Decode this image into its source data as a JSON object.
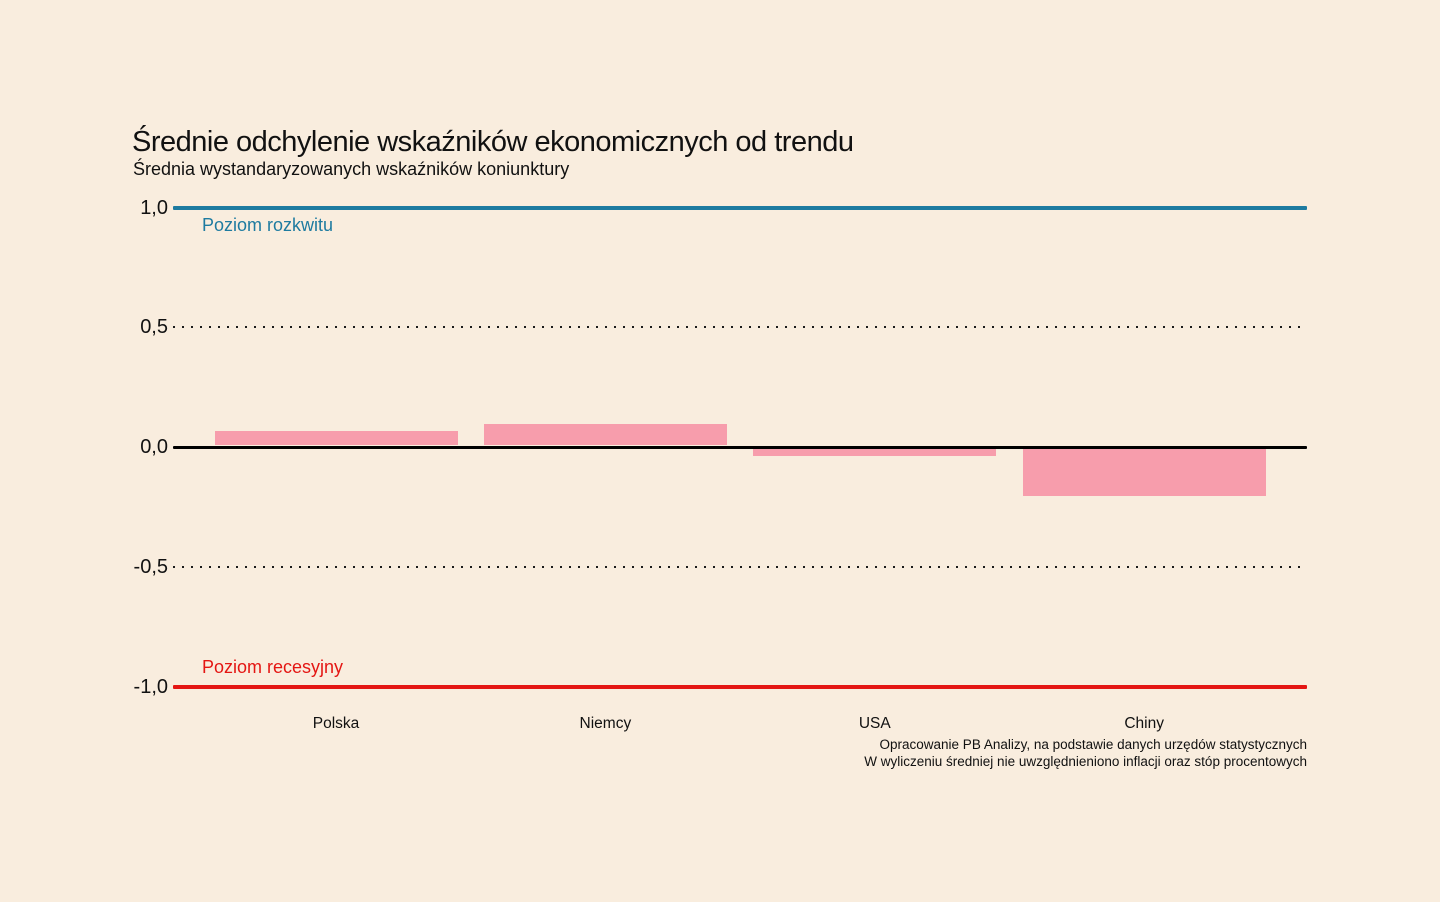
{
  "page": {
    "background": "#F9EDDE"
  },
  "chart": {
    "title": "Średnie odchylenie wskaźników ekonomicznych od trendu",
    "subtitle": "Średnia wystandaryzowanych wskaźników koniunktury",
    "source_line1": "Opracowanie PB Analizy, na podstawie danych urzędów statystycznych",
    "source_line2": "W wyliczeniu średniej nie uwzględnieniono inflacji oraz stóp procentowych"
  },
  "chart_data": {
    "type": "bar",
    "title": "Średnie odchylenie wskaźników ekonomicznych od trendu",
    "subtitle": "Średnia wystandaryzowanych wskaźników koniunktury",
    "categories": [
      "Polska",
      "Niemcy",
      "USA",
      "Chiny"
    ],
    "values": [
      0.06,
      0.09,
      -0.03,
      -0.2
    ],
    "bar_color": "#F79DAC",
    "xlabel": "",
    "ylabel": "",
    "ylim": [
      -1.0,
      1.0
    ],
    "grid": "off",
    "legend": "none",
    "yticks": [
      {
        "value": 1.0,
        "label": "1,0"
      },
      {
        "value": 0.5,
        "label": "0,5"
      },
      {
        "value": 0.0,
        "label": "0,0"
      },
      {
        "value": -0.5,
        "label": "-0,5"
      },
      {
        "value": -1.0,
        "label": "-1,0"
      }
    ],
    "reference_lines": [
      {
        "value": 1.0,
        "style": "solid",
        "thickness": 4,
        "color": "#1E7BA0",
        "label": "Poziom rozkwitu",
        "label_position": "below"
      },
      {
        "value": 0.5,
        "style": "dotted",
        "thickness": 2,
        "color": "#1A1A1A"
      },
      {
        "value": 0.0,
        "style": "solid",
        "thickness": 3,
        "color": "#000000"
      },
      {
        "value": -0.5,
        "style": "dotted",
        "thickness": 2,
        "color": "#1A1A1A"
      },
      {
        "value": -1.0,
        "style": "solid",
        "thickness": 4,
        "color": "#E41613",
        "label": "Poziom recesyjny",
        "label_position": "above"
      }
    ],
    "annotations": [
      "Opracowanie PB Analizy, na podstawie danych urzędów statystycznych",
      "W wyliczeniu średniej nie uwzględnieniono inflacji oraz stóp procentowych"
    ]
  }
}
